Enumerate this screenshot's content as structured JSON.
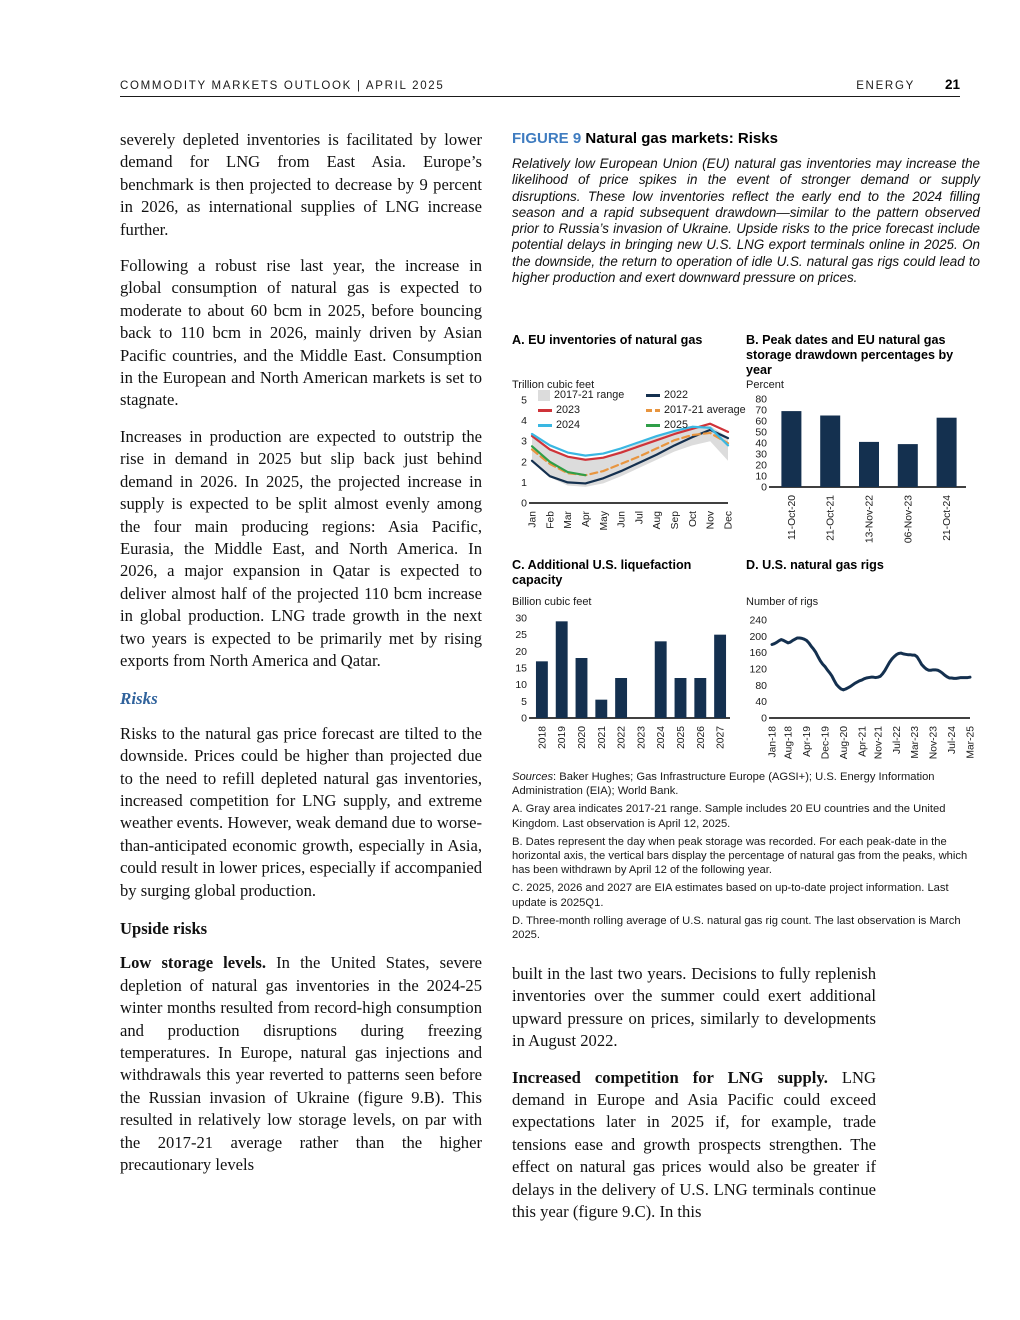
{
  "header": {
    "left": "COMMODITY MARKETS OUTLOOK | APRIL 2025",
    "section": "ENERGY",
    "page_number": "21"
  },
  "left_column": {
    "p1": "severely depleted inventories is facilitated by lower demand for LNG from East Asia. Europe’s benchmark is then projected to decrease by 9 percent in 2026, as international supplies of LNG increase further.",
    "p2": "Following a robust rise last year, the increase in global consumption of natural gas is expected to moderate to about 60 bcm in 2025, before bouncing back to 110 bcm in 2026, mainly driven by Asian Pacific countries, and the Middle East. Consumption in the European and North American markets is set to stagnate.",
    "p3": "Increases in production are expected to outstrip the rise in demand in 2025 but slip back just behind demand in 2026. In 2025, the projected increase in supply is expected to be split almost evenly among the four main producing regions: Asia Pacific, Eurasia, the Middle East, and North America. In 2026, a major expansion in Qatar is expected to deliver almost half of the projected 110 bcm increase in global production. LNG trade growth in the next two years is expected to be primarily met by rising exports from North America and Qatar.",
    "risks_heading": "Risks",
    "risks_paragraph": "Risks to the natural gas price forecast are tilted to the downside. Prices could be higher than projected due to the need to refill depleted natural gas inventories, increased competition for LNG supply, and extreme weather events. However, weak demand due to worse-than-anticipated economic growth, especially in Asia, could result in lower prices, especially if accompanied by surging global production.",
    "upside_heading": "Upside risks",
    "low_storage_lead": "Low storage levels.",
    "low_storage_text": " In the United States, severe depletion of natural gas inventories in the 2024-25 winter months resulted from record-high consumption and production disruptions during freezing temperatures. In Europe, natural gas injections and withdrawals this year reverted to patterns seen before the Russian invasion of Ukraine (figure 9.B). This resulted in relatively low storage levels, on par with the 2017-21 average rather than the higher precautionary levels"
  },
  "right_column_bottom": {
    "p1": "built in the last two years. Decisions to fully replenish inventories over the summer could exert additional upward pressure on prices, similarly to developments in August 2022.",
    "p2_lead": "Increased competition for LNG supply.",
    "p2_text": " LNG demand in Europe and Asia Pacific could exceed expectations later in 2025 if, for example, trade tensions ease and growth prospects strengthen. The effect on natural gas prices would also be greater if delays in the delivery of U.S. LNG terminals continue this year (figure 9.C). In this"
  },
  "figure": {
    "label": "FIGURE 9",
    "title": " Natural gas markets: Risks",
    "intro": "Relatively low European Union (EU) natural gas inventories may increase the likelihood of price spikes in the event of stronger demand or supply disruptions. These low inventories reflect the early end to the 2024 filling season and a rapid subsequent drawdown—similar to the pattern observed prior to Russia’s invasion of Ukraine. Upside risks to the price forecast include potential delays in bringing new U.S. LNG export terminals online in 2025. On the downside, the return to operation of idle U.S. natural gas rigs could lead to higher production and exert downward pressure on prices.",
    "sources_label": "Sources",
    "sources_text": ": Baker Hughes; Gas Infrastructure Europe (AGSI+); U.S. Energy Information Administration (EIA); World Bank.",
    "notes": [
      "A. Gray area indicates 2017-21 range. Sample includes 20 EU countries and the United Kingdom. Last observation is April 12, 2025.",
      "B. Dates represent the day when peak storage was recorded. For each peak-date in the horizontal axis, the vertical bars display the percentage of natural gas from the peaks, which has been withdrawn by April 12 of the following year.",
      "C. 2025, 2026 and 2027 are EIA estimates based on up-to-date project information. Last update is 2025Q1.",
      "D. Three-month rolling average of U.S. natural gas rig count. The last observation is March 2025."
    ]
  },
  "colors": {
    "navy": "#14304f",
    "red": "#cf3339",
    "cyan": "#3ab7e2",
    "orange": "#e8953f",
    "green": "#2f9e48",
    "range_gray": "#dcdcdc",
    "figure_label_blue": "#3f7cc0",
    "risks_heading_blue": "#31639c"
  },
  "chart_data": [
    {
      "id": "A",
      "type": "line",
      "title": "A. EU inventories of natural gas",
      "unit_label": "Trillion cubic feet",
      "x": [
        "Jan",
        "Feb",
        "Mar",
        "Apr",
        "May",
        "Jun",
        "Jul",
        "Aug",
        "Sep",
        "Oct",
        "Nov",
        "Dec"
      ],
      "ylim": [
        0,
        5
      ],
      "yticks": [
        0,
        1,
        2,
        3,
        4,
        5
      ],
      "band": {
        "name": "2017-21 range",
        "color": "#dcdcdc",
        "low": [
          2.0,
          1.25,
          0.85,
          0.78,
          0.95,
          1.3,
          1.7,
          2.1,
          2.5,
          2.8,
          3.0,
          2.05
        ],
        "high": [
          3.3,
          2.65,
          2.2,
          2.1,
          2.25,
          2.55,
          2.9,
          3.25,
          3.55,
          3.7,
          3.75,
          3.2
        ]
      },
      "series": [
        {
          "name": "2022",
          "color": "#14304f",
          "values": [
            2.05,
            1.3,
            1.0,
            0.95,
            1.2,
            1.55,
            1.95,
            2.35,
            2.8,
            3.2,
            3.55,
            3.15
          ]
        },
        {
          "name": "2017-21 average",
          "color": "#e8953f",
          "dash": true,
          "values": [
            2.6,
            1.9,
            1.45,
            1.35,
            1.55,
            1.9,
            2.25,
            2.65,
            3.05,
            3.3,
            3.4,
            2.9
          ]
        },
        {
          "name": "2023",
          "color": "#cf3339",
          "values": [
            3.25,
            2.6,
            2.25,
            2.1,
            2.2,
            2.45,
            2.75,
            3.05,
            3.35,
            3.6,
            3.85,
            3.45
          ]
        },
        {
          "name": "2024",
          "color": "#3ab7e2",
          "values": [
            3.35,
            2.8,
            2.45,
            2.3,
            2.4,
            2.65,
            2.95,
            3.25,
            3.5,
            3.7,
            3.65,
            2.8
          ]
        },
        {
          "name": "2025",
          "color": "#2f9e48",
          "values": [
            2.75,
            2.0,
            1.5,
            1.35
          ]
        }
      ],
      "legend_order": [
        "2017-21 range",
        "2022",
        "2023",
        "2017-21 average",
        "2024",
        "2025"
      ],
      "legend_position": "top-left, two columns, overlapping plot"
    },
    {
      "id": "B",
      "type": "bar",
      "title": "B. Peak dates and EU natural gas storage drawdown percentages by year",
      "unit_label": "Percent",
      "categories": [
        "11-Oct-20",
        "21-Oct-21",
        "13-Nov-22",
        "06-Nov-23",
        "21-Oct-24"
      ],
      "values": [
        69,
        65,
        41,
        39,
        63
      ],
      "ylim": [
        0,
        80
      ],
      "yticks": [
        0,
        10,
        20,
        30,
        40,
        50,
        60,
        70,
        80
      ],
      "bar_color": "#14304f"
    },
    {
      "id": "C",
      "type": "bar",
      "title": "C. Additional U.S. liquefaction capacity",
      "unit_label": "Billion cubic feet",
      "categories": [
        "2018",
        "2019",
        "2020",
        "2021",
        "2022",
        "2023",
        "2024",
        "2025",
        "2026",
        "2027"
      ],
      "values": [
        17,
        29,
        18,
        5.5,
        12,
        0,
        23,
        12,
        12,
        25
      ],
      "ylim": [
        0,
        30
      ],
      "yticks": [
        0,
        5,
        10,
        15,
        20,
        25,
        30
      ],
      "bar_color": "#14304f"
    },
    {
      "id": "D",
      "type": "line",
      "title": "D. U.S. natural gas rigs",
      "unit_label": "Number of rigs",
      "ylim": [
        0,
        240
      ],
      "yticks": [
        0,
        40,
        80,
        120,
        160,
        200,
        240
      ],
      "xticks": [
        "Jan-18",
        "Aug-18",
        "Apr-19",
        "Dec-19",
        "Aug-20",
        "Apr-21",
        "Nov-21",
        "Jul-22",
        "Mar-23",
        "Nov-23",
        "Jul-24",
        "Mar-25"
      ],
      "xtick_positions": [
        0,
        7,
        15,
        23,
        31,
        39,
        46,
        54,
        62,
        70,
        78,
        86
      ],
      "series": [
        {
          "name": "U.S. natural gas rigs (3-month rolling average)",
          "color": "#14304f",
          "width": 3,
          "values": [
            180,
            182,
            185,
            189,
            192,
            190,
            187,
            184,
            186,
            190,
            193,
            196,
            196,
            195,
            193,
            190,
            184,
            176,
            169,
            161,
            150,
            140,
            132,
            126,
            118,
            111,
            103,
            92,
            82,
            76,
            71,
            69,
            71,
            74,
            77,
            81,
            85,
            88,
            91,
            93,
            96,
            98,
            99,
            100,
            100,
            99,
            100,
            102,
            108,
            116,
            126,
            136,
            144,
            150,
            155,
            158,
            159,
            157,
            156,
            155,
            155,
            154,
            154,
            150,
            141,
            131,
            125,
            120,
            117,
            117,
            118,
            118,
            117,
            114,
            110,
            105,
            101,
            98,
            98,
            97,
            97,
            98,
            99,
            99,
            99,
            99,
            100
          ]
        }
      ]
    }
  ]
}
